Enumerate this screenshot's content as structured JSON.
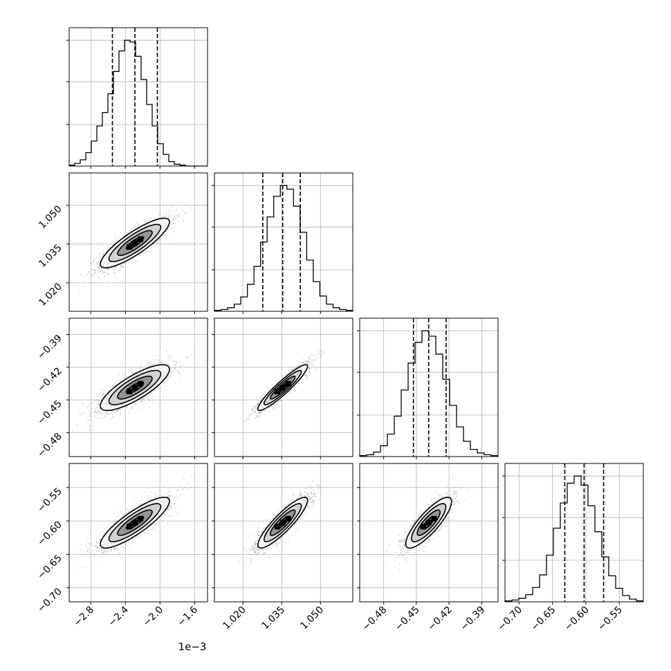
{
  "chart_data": {
    "type": "corner",
    "parameters": [
      {
        "index": 0,
        "range": [
          -3.05,
          -1.45
        ],
        "ticks": [
          -2.8,
          -2.4,
          -2.0,
          -1.6
        ],
        "tick_labels": [
          "−2.8",
          "−2.4",
          "−2.0",
          "−1.6"
        ],
        "offset_label": "1e−3",
        "quantiles": [
          -2.55,
          -2.29,
          -2.03
        ],
        "median": -2.29,
        "sigma": 0.2
      },
      {
        "index": 1,
        "range": [
          1.009,
          1.0625
        ],
        "ticks": [
          1.02,
          1.035,
          1.05
        ],
        "tick_labels": [
          "1.020",
          "1.035",
          "1.050"
        ],
        "quantiles": [
          1.0277,
          1.0354,
          1.0422
        ],
        "median": 1.0354,
        "sigma": 0.0048
      },
      {
        "index": 2,
        "range": [
          -0.502,
          -0.375
        ],
        "ticks": [
          -0.48,
          -0.45,
          -0.42,
          -0.39
        ],
        "tick_labels": [
          "−0.48",
          "−0.45",
          "−0.42",
          "−0.39"
        ],
        "quantiles": [
          -0.4527,
          -0.4387,
          -0.4227
        ],
        "median": -0.4387,
        "sigma": 0.0105
      },
      {
        "index": 3,
        "range": [
          -0.721,
          -0.514
        ],
        "ticks": [
          -0.7,
          -0.65,
          -0.6,
          -0.55
        ],
        "tick_labels": [
          "−0.70",
          "−0.65",
          "−0.60",
          "−0.55"
        ],
        "quantiles": [
          -0.6315,
          -0.6026,
          -0.5734
        ],
        "median": -0.6026,
        "sigma": 0.019
      }
    ],
    "histograms": [
      {
        "param": 0,
        "counts": [
          1,
          3,
          7,
          15,
          28,
          45,
          60,
          81,
          106,
          129,
          141,
          139,
          123,
          97,
          69,
          45,
          25,
          13,
          5,
          2,
          1,
          0,
          0,
          0,
          0
        ]
      },
      {
        "param": 1,
        "counts": [
          1,
          2,
          4,
          8,
          16,
          30,
          50,
          77,
          105,
          128,
          140,
          136,
          117,
          88,
          57,
          33,
          17,
          8,
          4,
          2,
          1
        ]
      },
      {
        "param": 2,
        "counts": [
          1,
          2,
          5,
          12,
          25,
          45,
          74,
          104,
          127,
          140,
          134,
          114,
          86,
          57,
          33,
          17,
          8,
          4,
          2,
          1
        ]
      },
      {
        "param": 3,
        "counts": [
          1,
          2,
          4,
          8,
          16,
          30,
          52,
          82,
          110,
          132,
          140,
          130,
          107,
          78,
          50,
          29,
          15,
          7,
          3,
          1
        ]
      }
    ],
    "correlations": {
      "1-0": 0.85,
      "2-0": 0.8,
      "2-1": 0.93,
      "3-0": 0.85,
      "3-1": 0.88,
      "3-2": 0.83
    },
    "contour_levels_sigma": [
      0.5,
      1.0,
      1.5,
      2.0
    ],
    "marker_style": "dashed vertical lines at 16%, 50%, 84% quantiles",
    "grid": true,
    "xlabel": "",
    "ylabel": "",
    "title": ""
  },
  "colors": {
    "line": "#000000",
    "grid": "#b0b0b0",
    "scatter": "#6e6e6e",
    "background": "#ffffff"
  }
}
